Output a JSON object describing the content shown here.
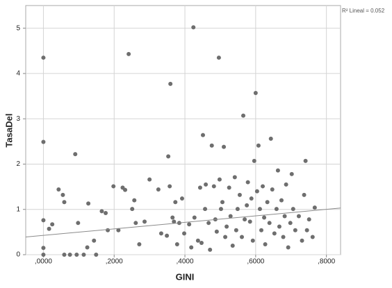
{
  "chart_data": {
    "type": "scatter",
    "x_label": "GINI",
    "y_label": "TasaDel",
    "annotation": "R² Lineal = 0.052",
    "color": "#6e6e6e",
    "grid": true,
    "xlim": [
      -0.05,
      0.84
    ],
    "ylim": [
      0,
      5.5
    ],
    "xticks": [
      {
        "value": 0,
        "label": ",0000"
      },
      {
        "value": 0.2,
        "label": ",2000"
      },
      {
        "value": 0.4,
        "label": ",4000"
      },
      {
        "value": 0.6,
        "label": ",6000"
      },
      {
        "value": 0.8,
        "label": ",8000"
      }
    ],
    "yticks": [
      0,
      1,
      2,
      3,
      4,
      5
    ],
    "fit_line": {
      "x": [
        -0.05,
        0.84
      ],
      "y": [
        0.39,
        1.03
      ],
      "color": "#8a8a8a"
    },
    "x": [
      0,
      0,
      0,
      0,
      0,
      0.016,
      0.025,
      0.043,
      0.055,
      0.059,
      0.059,
      0.075,
      0.09,
      0.098,
      0.094,
      0.114,
      0.127,
      0.124,
      0.143,
      0.149,
      0.165,
      0.176,
      0.182,
      0.198,
      0.212,
      0.224,
      0.231,
      0.241,
      0.251,
      0.257,
      0.261,
      0.271,
      0.286,
      0.3,
      0.325,
      0.333,
      0.349,
      0.353,
      0.357,
      0.359,
      0.365,
      0.369,
      0.373,
      0.378,
      0.384,
      0.392,
      0.398,
      0.412,
      0.418,
      0.424,
      0.427,
      0.437,
      0.443,
      0.447,
      0.451,
      0.457,
      0.459,
      0.467,
      0.471,
      0.476,
      0.482,
      0.486,
      0.49,
      0.496,
      0.498,
      0.502,
      0.506,
      0.51,
      0.514,
      0.518,
      0.525,
      0.529,
      0.535,
      0.541,
      0.545,
      0.549,
      0.555,
      0.561,
      0.565,
      0.569,
      0.575,
      0.578,
      0.584,
      0.588,
      0.592,
      0.596,
      0.6,
      0.604,
      0.608,
      0.612,
      0.616,
      0.62,
      0.624,
      0.627,
      0.633,
      0.639,
      0.643,
      0.647,
      0.653,
      0.659,
      0.663,
      0.667,
      0.673,
      0.678,
      0.682,
      0.686,
      0.692,
      0.698,
      0.702,
      0.706,
      0.712,
      0.722,
      0.731,
      0.737,
      0.741,
      0.745,
      0.751,
      0.761,
      0.767
    ],
    "values": [
      4.35,
      2.49,
      0.76,
      0.15,
      0,
      0.57,
      0.67,
      1.44,
      1.32,
      1.16,
      0,
      0,
      2.22,
      0.7,
      0,
      0,
      1.13,
      0.16,
      0.31,
      0,
      0.96,
      0.92,
      0.54,
      1.51,
      0.54,
      1.48,
      1.43,
      4.43,
      1.01,
      1.2,
      0.7,
      0.23,
      0.73,
      1.66,
      1.44,
      0.47,
      0.42,
      2.17,
      1.51,
      3.77,
      0.82,
      0.73,
      1.16,
      0.23,
      0.7,
      1.24,
      0.47,
      0.67,
      0.16,
      5.02,
      0.82,
      0.31,
      1.48,
      0.26,
      2.64,
      1.01,
      1.55,
      0.7,
      0.11,
      2.41,
      1.51,
      0.78,
      0.51,
      4.35,
      1.66,
      1.01,
      1.16,
      2.38,
      0.39,
      0.62,
      1.48,
      0.85,
      0.2,
      1.71,
      0.54,
      1.01,
      1.32,
      0.39,
      3.07,
      0.78,
      1.09,
      1.6,
      0.73,
      1.24,
      0.31,
      2.07,
      3.57,
      1.4,
      2.41,
      1.01,
      0.54,
      1.51,
      0.82,
      0.23,
      1.16,
      0.7,
      2.56,
      1.44,
      0.47,
      1.01,
      1.86,
      0.62,
      1.2,
      0.39,
      0.85,
      1.55,
      0.16,
      0.7,
      1.78,
      1.01,
      0.54,
      0.85,
      0.31,
      1.32,
      2.07,
      0.54,
      0.78,
      0.39,
      1.04
    ]
  }
}
